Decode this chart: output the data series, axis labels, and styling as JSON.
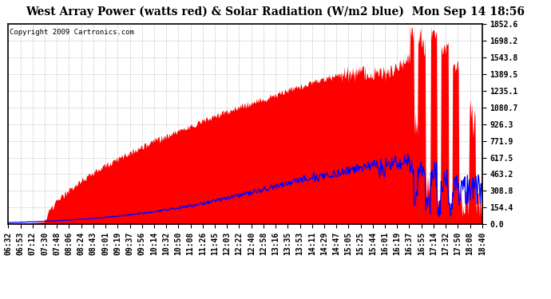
{
  "title": "West Array Power (watts red) & Solar Radiation (W/m2 blue)  Mon Sep 14 18:56",
  "copyright": "Copyright 2009 Cartronics.com",
  "background_color": "#ffffff",
  "plot_bg_color": "#ffffff",
  "grid_color": "#b0b0b0",
  "y_ticks": [
    0.0,
    154.4,
    308.8,
    463.2,
    617.5,
    771.9,
    926.3,
    1080.7,
    1235.1,
    1389.5,
    1543.8,
    1698.2,
    1852.6
  ],
  "y_max": 1852.6,
  "x_labels": [
    "06:32",
    "06:53",
    "07:12",
    "07:30",
    "07:48",
    "08:06",
    "08:24",
    "08:43",
    "09:01",
    "09:19",
    "09:37",
    "09:56",
    "10:14",
    "10:32",
    "10:50",
    "11:08",
    "11:26",
    "11:45",
    "12:03",
    "12:22",
    "12:40",
    "12:58",
    "13:16",
    "13:35",
    "13:53",
    "14:11",
    "14:29",
    "14:47",
    "15:05",
    "15:25",
    "15:44",
    "16:01",
    "16:19",
    "16:37",
    "16:55",
    "17:14",
    "17:32",
    "17:50",
    "18:08",
    "18:40"
  ],
  "red_color": "#ff0000",
  "blue_color": "#0000ff",
  "title_fontsize": 10,
  "tick_fontsize": 7.0,
  "copyright_fontsize": 6.5,
  "n_points": 740
}
